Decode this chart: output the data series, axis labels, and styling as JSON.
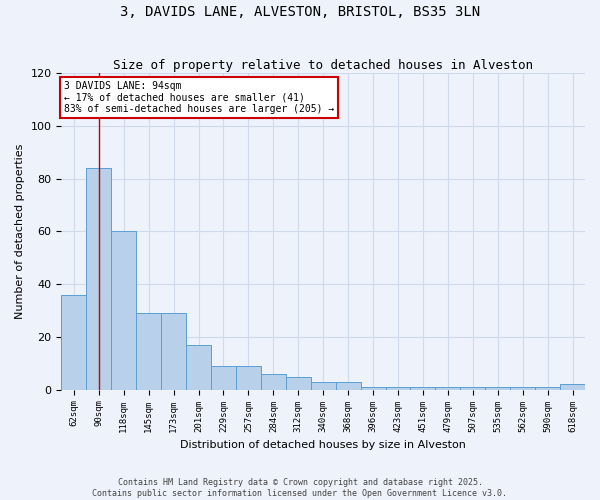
{
  "title": "3, DAVIDS LANE, ALVESTON, BRISTOL, BS35 3LN",
  "subtitle": "Size of property relative to detached houses in Alveston",
  "xlabel": "Distribution of detached houses by size in Alveston",
  "ylabel": "Number of detached properties",
  "bar_values": [
    36,
    84,
    60,
    29,
    29,
    17,
    9,
    9,
    6,
    5,
    3,
    3,
    1,
    1,
    1,
    1,
    1,
    1,
    1,
    1,
    2
  ],
  "bin_labels": [
    "62sqm",
    "90sqm",
    "118sqm",
    "145sqm",
    "173sqm",
    "201sqm",
    "229sqm",
    "257sqm",
    "284sqm",
    "312sqm",
    "340sqm",
    "368sqm",
    "396sqm",
    "423sqm",
    "451sqm",
    "479sqm",
    "507sqm",
    "535sqm",
    "562sqm",
    "590sqm",
    "618sqm"
  ],
  "bar_color": "#b8d0ea",
  "bar_edge_color": "#5a9fd4",
  "bg_color": "#edf2fb",
  "grid_color": "#d0daea",
  "vline_color": "#cc0000",
  "vline_bin": 1,
  "annotation_title": "3 DAVIDS LANE: 94sqm",
  "annotation_line1": "← 17% of detached houses are smaller (41)",
  "annotation_line2": "83% of semi-detached houses are larger (205) →",
  "annotation_box_edge_color": "#cc0000",
  "ylim": [
    0,
    120
  ],
  "yticks": [
    0,
    20,
    40,
    60,
    80,
    100,
    120
  ],
  "footer": "Contains HM Land Registry data © Crown copyright and database right 2025.\nContains public sector information licensed under the Open Government Licence v3.0."
}
